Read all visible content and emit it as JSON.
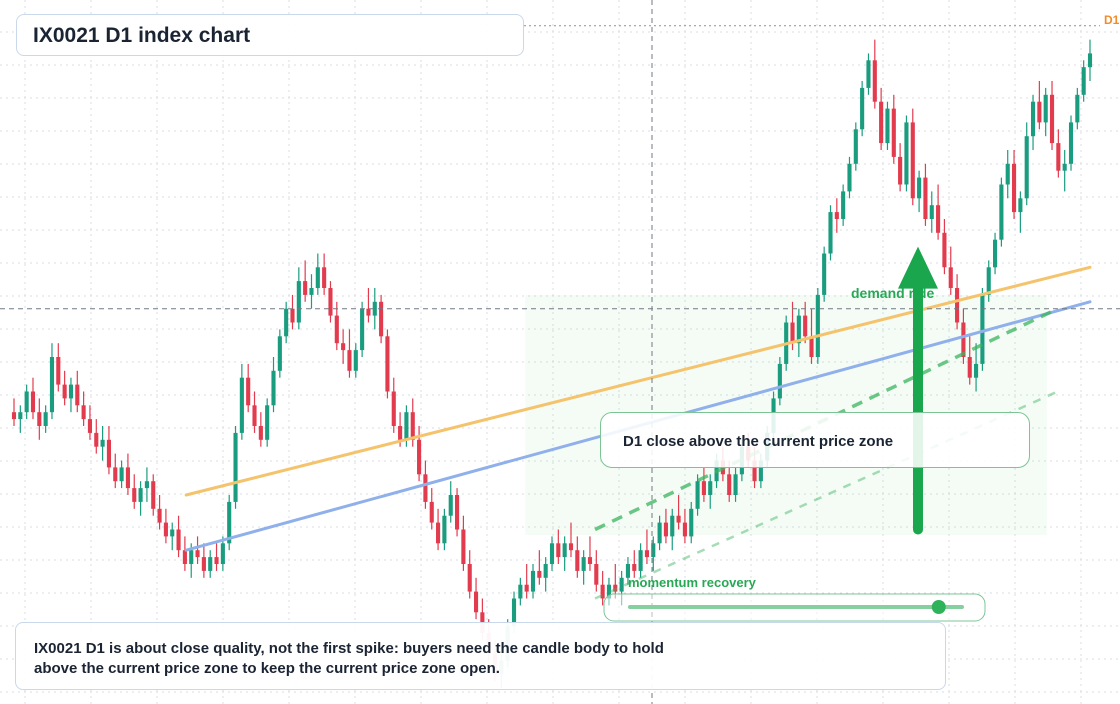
{
  "title": "IX0021 D1 index chart",
  "callout": "D1 close above the current price zone",
  "description": {
    "line1": "IX0021 D1 is about close quality, not the first spike: buyers need the candle body to hold",
    "line2": "above the current price zone to keep the current price zone open."
  },
  "labels": {
    "zone": "demand ride",
    "slider": "momentum recovery",
    "price_tag": "D1"
  },
  "colors": {
    "up": "#1a9c7f",
    "down": "#e23b4e",
    "ma_fast": "#f4c36c",
    "ma_slow": "#8fb0ea",
    "accent": "#19a64c",
    "grid": "#d8dde4"
  },
  "chart_data": {
    "type": "candlestick",
    "y_range": [
      0,
      100
    ],
    "hline_level": 57,
    "ohlc": [
      [
        42,
        44,
        40,
        41
      ],
      [
        41,
        43,
        39,
        42
      ],
      [
        42,
        46,
        41,
        45
      ],
      [
        45,
        47,
        41,
        42
      ],
      [
        42,
        44,
        38,
        40
      ],
      [
        40,
        43,
        39,
        42
      ],
      [
        42,
        52,
        41,
        50
      ],
      [
        50,
        52,
        45,
        46
      ],
      [
        46,
        48,
        43,
        44
      ],
      [
        44,
        47,
        42,
        46
      ],
      [
        46,
        48,
        42,
        43
      ],
      [
        43,
        45,
        40,
        41
      ],
      [
        41,
        43,
        38,
        39
      ],
      [
        39,
        41,
        36,
        37
      ],
      [
        37,
        40,
        35,
        38
      ],
      [
        38,
        40,
        33,
        34
      ],
      [
        34,
        36,
        31,
        32
      ],
      [
        32,
        35,
        31,
        34
      ],
      [
        34,
        36,
        30,
        31
      ],
      [
        31,
        33,
        28,
        29
      ],
      [
        29,
        32,
        27,
        31
      ],
      [
        31,
        34,
        29,
        32
      ],
      [
        32,
        33,
        27,
        28
      ],
      [
        28,
        30,
        25,
        26
      ],
      [
        26,
        28,
        23,
        24
      ],
      [
        24,
        26,
        22,
        25
      ],
      [
        25,
        27,
        21,
        22
      ],
      [
        22,
        24,
        19,
        20
      ],
      [
        20,
        23,
        18,
        22
      ],
      [
        22,
        24,
        20,
        21
      ],
      [
        21,
        23,
        18,
        19
      ],
      [
        19,
        22,
        18,
        21
      ],
      [
        21,
        23,
        19,
        20
      ],
      [
        20,
        24,
        19,
        23
      ],
      [
        23,
        30,
        22,
        29
      ],
      [
        29,
        40,
        28,
        39
      ],
      [
        39,
        49,
        38,
        47
      ],
      [
        47,
        49,
        42,
        43
      ],
      [
        43,
        45,
        39,
        40
      ],
      [
        40,
        42,
        37,
        38
      ],
      [
        38,
        44,
        37,
        43
      ],
      [
        43,
        50,
        42,
        48
      ],
      [
        48,
        54,
        47,
        53
      ],
      [
        53,
        58,
        52,
        57
      ],
      [
        57,
        59,
        54,
        55
      ],
      [
        55,
        63,
        54,
        61
      ],
      [
        61,
        64,
        58,
        59
      ],
      [
        59,
        62,
        57,
        60
      ],
      [
        60,
        65,
        59,
        63
      ],
      [
        63,
        65,
        59,
        60
      ],
      [
        60,
        61,
        55,
        56
      ],
      [
        56,
        58,
        51,
        52
      ],
      [
        52,
        54,
        49,
        51
      ],
      [
        51,
        54,
        47,
        48
      ],
      [
        48,
        52,
        47,
        51
      ],
      [
        51,
        58,
        50,
        57
      ],
      [
        57,
        60,
        55,
        56
      ],
      [
        56,
        60,
        54,
        58
      ],
      [
        58,
        59,
        52,
        53
      ],
      [
        53,
        54,
        44,
        45
      ],
      [
        45,
        47,
        39,
        40
      ],
      [
        40,
        42,
        37,
        38
      ],
      [
        38,
        43,
        37,
        42
      ],
      [
        42,
        44,
        37,
        38
      ],
      [
        38,
        40,
        32,
        33
      ],
      [
        33,
        35,
        28,
        29
      ],
      [
        29,
        31,
        25,
        26
      ],
      [
        26,
        28,
        22,
        23
      ],
      [
        23,
        28,
        22,
        27
      ],
      [
        27,
        32,
        26,
        30
      ],
      [
        30,
        31,
        24,
        25
      ],
      [
        25,
        27,
        19,
        20
      ],
      [
        20,
        22,
        15,
        16
      ],
      [
        16,
        18,
        12,
        13
      ],
      [
        13,
        15,
        9,
        10
      ],
      [
        10,
        12,
        6,
        7
      ],
      [
        7,
        9,
        3,
        4
      ],
      [
        4,
        7,
        2,
        6
      ],
      [
        6,
        12,
        5,
        11
      ],
      [
        11,
        16,
        10,
        15
      ],
      [
        15,
        18,
        14,
        17
      ],
      [
        17,
        20,
        15,
        16
      ],
      [
        16,
        20,
        15,
        19
      ],
      [
        19,
        22,
        17,
        18
      ],
      [
        18,
        21,
        16,
        20
      ],
      [
        20,
        24,
        19,
        23
      ],
      [
        23,
        25,
        20,
        21
      ],
      [
        21,
        24,
        19,
        23
      ],
      [
        23,
        26,
        21,
        22
      ],
      [
        22,
        24,
        18,
        19
      ],
      [
        19,
        22,
        17,
        21
      ],
      [
        21,
        24,
        19,
        20
      ],
      [
        20,
        22,
        16,
        17
      ],
      [
        17,
        19,
        14,
        15
      ],
      [
        15,
        18,
        14,
        17
      ],
      [
        17,
        20,
        15,
        16
      ],
      [
        16,
        19,
        14,
        18
      ],
      [
        18,
        21,
        17,
        20
      ],
      [
        20,
        22,
        18,
        19
      ],
      [
        19,
        23,
        18,
        22
      ],
      [
        22,
        25,
        20,
        21
      ],
      [
        21,
        24,
        19,
        23
      ],
      [
        23,
        27,
        22,
        26
      ],
      [
        26,
        28,
        23,
        24
      ],
      [
        24,
        28,
        22,
        27
      ],
      [
        27,
        30,
        25,
        26
      ],
      [
        26,
        28,
        23,
        24
      ],
      [
        24,
        29,
        23,
        28
      ],
      [
        28,
        33,
        27,
        32
      ],
      [
        32,
        34,
        29,
        30
      ],
      [
        30,
        33,
        28,
        32
      ],
      [
        32,
        36,
        31,
        35
      ],
      [
        35,
        37,
        32,
        33
      ],
      [
        33,
        35,
        29,
        30
      ],
      [
        30,
        34,
        29,
        33
      ],
      [
        33,
        38,
        32,
        37
      ],
      [
        37,
        39,
        34,
        35
      ],
      [
        35,
        37,
        31,
        32
      ],
      [
        32,
        36,
        31,
        35
      ],
      [
        35,
        40,
        34,
        39
      ],
      [
        39,
        45,
        38,
        44
      ],
      [
        44,
        50,
        43,
        49
      ],
      [
        49,
        56,
        48,
        55
      ],
      [
        55,
        58,
        51,
        52
      ],
      [
        52,
        57,
        50,
        56
      ],
      [
        56,
        58,
        52,
        53
      ],
      [
        53,
        57,
        49,
        50
      ],
      [
        50,
        60,
        49,
        59
      ],
      [
        59,
        66,
        58,
        65
      ],
      [
        65,
        72,
        64,
        71
      ],
      [
        71,
        73,
        68,
        70
      ],
      [
        70,
        75,
        69,
        74
      ],
      [
        74,
        79,
        73,
        78
      ],
      [
        78,
        84,
        77,
        83
      ],
      [
        83,
        90,
        82,
        89
      ],
      [
        89,
        94,
        88,
        93
      ],
      [
        93,
        96,
        86,
        87
      ],
      [
        87,
        89,
        80,
        81
      ],
      [
        81,
        87,
        80,
        86
      ],
      [
        86,
        88,
        78,
        79
      ],
      [
        79,
        81,
        74,
        75
      ],
      [
        75,
        85,
        74,
        84
      ],
      [
        84,
        86,
        72,
        73
      ],
      [
        73,
        77,
        71,
        76
      ],
      [
        76,
        78,
        69,
        70
      ],
      [
        70,
        74,
        68,
        72
      ],
      [
        72,
        75,
        67,
        68
      ],
      [
        68,
        70,
        62,
        63
      ],
      [
        63,
        66,
        59,
        60
      ],
      [
        60,
        62,
        54,
        55
      ],
      [
        55,
        57,
        49,
        50
      ],
      [
        50,
        53,
        46,
        47
      ],
      [
        47,
        52,
        45,
        49
      ],
      [
        49,
        60,
        48,
        59
      ],
      [
        59,
        64,
        58,
        63
      ],
      [
        63,
        68,
        62,
        67
      ],
      [
        67,
        76,
        66,
        75
      ],
      [
        75,
        80,
        73,
        78
      ],
      [
        78,
        80,
        70,
        71
      ],
      [
        71,
        74,
        68,
        73
      ],
      [
        73,
        84,
        72,
        82
      ],
      [
        82,
        88,
        80,
        87
      ],
      [
        87,
        90,
        83,
        84
      ],
      [
        84,
        89,
        82,
        88
      ],
      [
        88,
        90,
        80,
        81
      ],
      [
        81,
        83,
        76,
        77
      ],
      [
        77,
        80,
        74,
        78
      ],
      [
        78,
        85,
        77,
        84
      ],
      [
        84,
        89,
        83,
        88
      ],
      [
        88,
        93,
        87,
        92
      ],
      [
        92,
        96,
        90,
        94
      ]
    ],
    "ma_fast": [
      [
        0.16,
        30
      ],
      [
        1.0,
        63
      ]
    ],
    "ma_slow": [
      [
        0.16,
        22
      ],
      [
        1.0,
        58
      ]
    ],
    "trend_line_1": [
      [
        0.54,
        25
      ],
      [
        0.97,
        57
      ]
    ],
    "trend_line_2": [
      [
        0.54,
        15
      ],
      [
        0.97,
        45
      ]
    ],
    "slider_value": 0.93,
    "arrow": {
      "from": 25,
      "to": 66
    }
  }
}
